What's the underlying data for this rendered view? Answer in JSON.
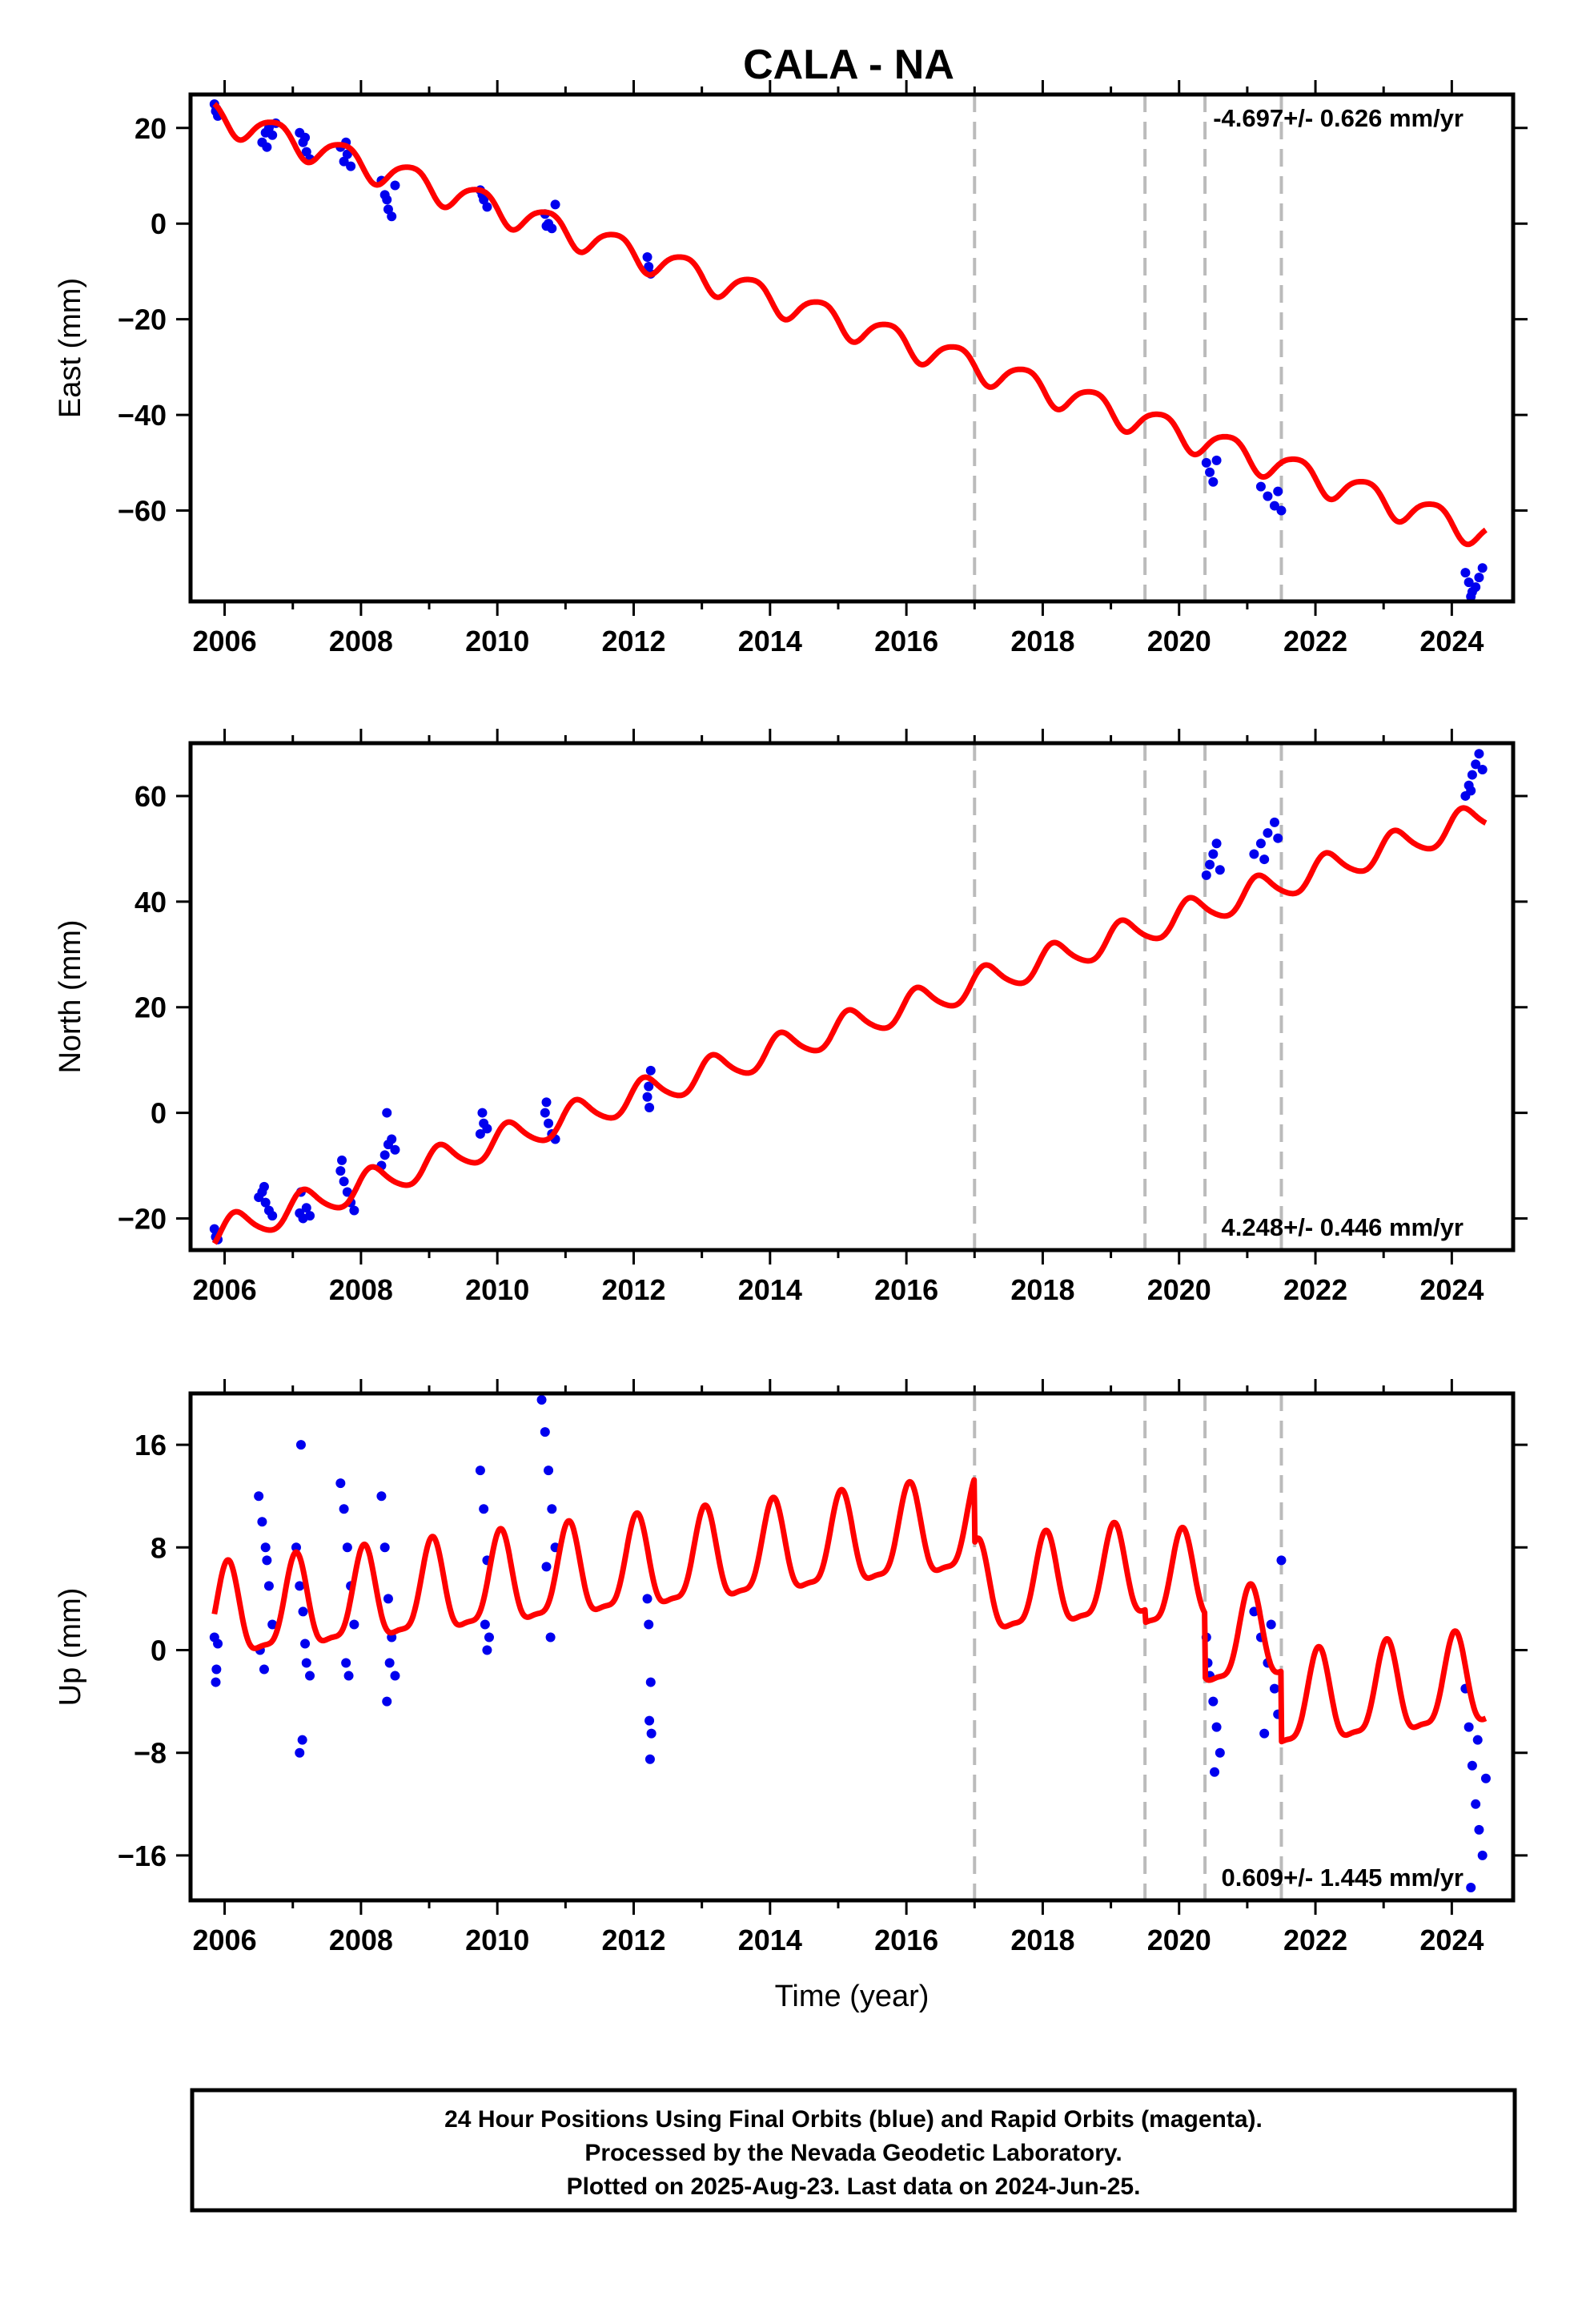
{
  "figure": {
    "title": "CALA - NA",
    "footer": {
      "line1": "24 Hour Positions Using Final Orbits (blue) and Rapid Orbits (magenta).",
      "line2": "Processed by the Nevada Geodetic Laboratory.",
      "line3": "Plotted on 2025-Aug-23. Last data on 2024-Jun-25."
    }
  },
  "colors": {
    "data": "#0000ee",
    "model": "#ff0000",
    "event": "#bbbbbb",
    "frame": "#000000"
  },
  "chart_data": [
    {
      "type": "scatter",
      "name": "east",
      "ylabel": "East (mm)",
      "xlabel": "",
      "xlim": [
        2005.5,
        2024.9
      ],
      "ylim": [
        -79,
        27
      ],
      "xticks": [
        2006,
        2008,
        2010,
        2012,
        2014,
        2016,
        2018,
        2020,
        2022,
        2024
      ],
      "yticks": [
        20,
        0,
        -20,
        -40,
        -60
      ],
      "rate_text": "-4.697+/- 0.626 mm/yr",
      "rate_position": "top-right",
      "event_lines_x": [
        2017.0,
        2019.5,
        2020.38,
        2021.5
      ],
      "model": {
        "intercept_2006": 22.0,
        "rate": -4.697,
        "annual_amp": 3.0,
        "annual_phase": 3.3,
        "semi_amp": 0.5,
        "offsets": []
      },
      "points": [
        [
          2005.85,
          25
        ],
        [
          2005.87,
          23.5
        ],
        [
          2005.9,
          22.5
        ],
        [
          2005.88,
          24
        ],
        [
          2006.55,
          17
        ],
        [
          2006.6,
          19
        ],
        [
          2006.65,
          20
        ],
        [
          2006.7,
          18.5
        ],
        [
          2006.75,
          21
        ],
        [
          2006.62,
          16
        ],
        [
          2007.1,
          19
        ],
        [
          2007.15,
          17
        ],
        [
          2007.2,
          15
        ],
        [
          2007.25,
          13.5
        ],
        [
          2007.18,
          18
        ],
        [
          2007.7,
          16
        ],
        [
          2007.75,
          13
        ],
        [
          2007.8,
          14.5
        ],
        [
          2007.85,
          12
        ],
        [
          2007.78,
          17
        ],
        [
          2008.3,
          9
        ],
        [
          2008.35,
          6
        ],
        [
          2008.4,
          3
        ],
        [
          2008.45,
          1.5
        ],
        [
          2008.5,
          8
        ],
        [
          2008.38,
          5
        ],
        [
          2009.75,
          7
        ],
        [
          2009.8,
          5
        ],
        [
          2009.85,
          3.5
        ],
        [
          2009.78,
          6
        ],
        [
          2010.7,
          2
        ],
        [
          2010.75,
          0
        ],
        [
          2010.8,
          -1
        ],
        [
          2010.85,
          4
        ],
        [
          2010.72,
          -0.5
        ],
        [
          2012.2,
          -7
        ],
        [
          2012.22,
          -9
        ],
        [
          2012.25,
          -10.5
        ],
        [
          2020.4,
          -50
        ],
        [
          2020.45,
          -52
        ],
        [
          2020.5,
          -54
        ],
        [
          2020.55,
          -49.5
        ],
        [
          2021.2,
          -55
        ],
        [
          2021.3,
          -57
        ],
        [
          2021.4,
          -59
        ],
        [
          2021.45,
          -56
        ],
        [
          2021.5,
          -60
        ],
        [
          2024.2,
          -73
        ],
        [
          2024.25,
          -75
        ],
        [
          2024.3,
          -77
        ],
        [
          2024.35,
          -76
        ],
        [
          2024.4,
          -74
        ],
        [
          2024.45,
          -72
        ],
        [
          2024.28,
          -78
        ]
      ]
    },
    {
      "type": "scatter",
      "name": "north",
      "ylabel": "North (mm)",
      "xlabel": "",
      "xlim": [
        2005.5,
        2024.9
      ],
      "ylim": [
        -26,
        70
      ],
      "xticks": [
        2006,
        2008,
        2010,
        2012,
        2014,
        2016,
        2018,
        2020,
        2022,
        2024
      ],
      "yticks": [
        60,
        40,
        20,
        0,
        -20
      ],
      "rate_text": "4.248+/- 0.446 mm/yr",
      "rate_position": "bottom-right",
      "event_lines_x": [
        2017.0,
        2019.5,
        2020.38,
        2021.5
      ],
      "model": {
        "intercept_2006": -22.5,
        "rate": 4.248,
        "annual_amp": 2.8,
        "annual_phase": 0.5,
        "semi_amp": 0.4,
        "offsets": []
      },
      "points": [
        [
          2005.85,
          -22
        ],
        [
          2005.87,
          -23.5
        ],
        [
          2005.9,
          -24
        ],
        [
          2006.5,
          -16
        ],
        [
          2006.55,
          -15
        ],
        [
          2006.6,
          -17
        ],
        [
          2006.65,
          -18.5
        ],
        [
          2006.7,
          -19.5
        ],
        [
          2006.58,
          -14
        ],
        [
          2007.1,
          -19
        ],
        [
          2007.15,
          -20
        ],
        [
          2007.2,
          -18
        ],
        [
          2007.12,
          -15
        ],
        [
          2007.25,
          -19.5
        ],
        [
          2007.7,
          -11
        ],
        [
          2007.75,
          -13
        ],
        [
          2007.8,
          -15
        ],
        [
          2007.85,
          -17
        ],
        [
          2007.9,
          -18.5
        ],
        [
          2007.72,
          -9
        ],
        [
          2008.3,
          -10
        ],
        [
          2008.35,
          -8
        ],
        [
          2008.4,
          -6
        ],
        [
          2008.45,
          -5
        ],
        [
          2008.5,
          -7
        ],
        [
          2008.38,
          0
        ],
        [
          2009.75,
          -4
        ],
        [
          2009.8,
          -2
        ],
        [
          2009.85,
          -3
        ],
        [
          2009.78,
          0
        ],
        [
          2010.7,
          0
        ],
        [
          2010.75,
          -2
        ],
        [
          2010.8,
          -4
        ],
        [
          2010.85,
          -5
        ],
        [
          2010.72,
          2
        ],
        [
          2012.2,
          3
        ],
        [
          2012.22,
          5
        ],
        [
          2012.25,
          8
        ],
        [
          2012.23,
          1
        ],
        [
          2020.4,
          45
        ],
        [
          2020.45,
          47
        ],
        [
          2020.5,
          49
        ],
        [
          2020.55,
          51
        ],
        [
          2020.6,
          46
        ],
        [
          2021.1,
          49
        ],
        [
          2021.2,
          51
        ],
        [
          2021.3,
          53
        ],
        [
          2021.4,
          55
        ],
        [
          2021.45,
          52
        ],
        [
          2021.25,
          48
        ],
        [
          2024.2,
          60
        ],
        [
          2024.25,
          62
        ],
        [
          2024.3,
          64
        ],
        [
          2024.35,
          66
        ],
        [
          2024.4,
          68
        ],
        [
          2024.45,
          65
        ],
        [
          2024.28,
          61
        ]
      ]
    },
    {
      "type": "scatter",
      "name": "up",
      "ylabel": "Up (mm)",
      "xlabel": "Time (year)",
      "xlim": [
        2005.5,
        2024.9
      ],
      "ylim": [
        -19.5,
        20
      ],
      "xticks": [
        2006,
        2008,
        2010,
        2012,
        2014,
        2016,
        2018,
        2020,
        2022,
        2024
      ],
      "yticks": [
        16,
        8,
        0,
        -8,
        -16
      ],
      "rate_text": "0.609+/- 1.445 mm/yr",
      "rate_position": "bottom-right",
      "event_lines_x": [
        2017.0,
        2019.5,
        2020.38,
        2021.5
      ],
      "model": {
        "intercept_2006": 2.5,
        "rate": 0.609,
        "annual_amp": 3.5,
        "annual_phase": 1.3,
        "semi_amp": 1.0,
        "offsets": [
          {
            "x": 2017.0,
            "dy": -5.0
          },
          {
            "x": 2019.5,
            "dy": -1.0
          },
          {
            "x": 2020.38,
            "dy": -5.0
          },
          {
            "x": 2021.5,
            "dy": -5.5
          }
        ]
      },
      "points": [
        [
          2005.85,
          1
        ],
        [
          2005.87,
          -2.5
        ],
        [
          2005.9,
          0.5
        ],
        [
          2005.88,
          -1.5
        ],
        [
          2006.5,
          12
        ],
        [
          2006.55,
          10
        ],
        [
          2006.6,
          8
        ],
        [
          2006.65,
          5
        ],
        [
          2006.7,
          2
        ],
        [
          2006.52,
          0
        ],
        [
          2006.58,
          -1.5
        ],
        [
          2006.62,
          7
        ],
        [
          2007.05,
          8
        ],
        [
          2007.1,
          5
        ],
        [
          2007.15,
          3
        ],
        [
          2007.2,
          -1
        ],
        [
          2007.25,
          -2
        ],
        [
          2007.12,
          16
        ],
        [
          2007.14,
          -7
        ],
        [
          2007.1,
          -8
        ],
        [
          2007.18,
          0.5
        ],
        [
          2007.7,
          13
        ],
        [
          2007.75,
          11
        ],
        [
          2007.8,
          8
        ],
        [
          2007.85,
          5
        ],
        [
          2007.9,
          2
        ],
        [
          2007.78,
          -1
        ],
        [
          2007.82,
          -2
        ],
        [
          2008.3,
          12
        ],
        [
          2008.35,
          8
        ],
        [
          2008.4,
          4
        ],
        [
          2008.45,
          1
        ],
        [
          2008.5,
          -2
        ],
        [
          2008.38,
          -4
        ],
        [
          2008.42,
          -1
        ],
        [
          2009.75,
          14
        ],
        [
          2009.8,
          11
        ],
        [
          2009.85,
          7
        ],
        [
          2009.82,
          2
        ],
        [
          2009.88,
          1
        ],
        [
          2009.85,
          0
        ],
        [
          2010.65,
          19.5
        ],
        [
          2010.7,
          17
        ],
        [
          2010.75,
          14
        ],
        [
          2010.8,
          11
        ],
        [
          2010.85,
          8
        ],
        [
          2010.72,
          6.5
        ],
        [
          2010.78,
          1
        ],
        [
          2012.2,
          4
        ],
        [
          2012.22,
          2
        ],
        [
          2012.25,
          -2.5
        ],
        [
          2012.23,
          -5.5
        ],
        [
          2012.26,
          -6.5
        ],
        [
          2012.24,
          -8.5
        ],
        [
          2020.4,
          1
        ],
        [
          2020.45,
          -2
        ],
        [
          2020.5,
          -4
        ],
        [
          2020.55,
          -6
        ],
        [
          2020.6,
          -8
        ],
        [
          2020.52,
          -9.5
        ],
        [
          2020.42,
          -1
        ],
        [
          2021.1,
          3
        ],
        [
          2021.2,
          1
        ],
        [
          2021.3,
          -1
        ],
        [
          2021.4,
          -3
        ],
        [
          2021.45,
          -5
        ],
        [
          2021.5,
          7
        ],
        [
          2021.35,
          2
        ],
        [
          2021.25,
          -6.5
        ],
        [
          2024.2,
          -3
        ],
        [
          2024.25,
          -6
        ],
        [
          2024.3,
          -9
        ],
        [
          2024.35,
          -12
        ],
        [
          2024.4,
          -14
        ],
        [
          2024.45,
          -16
        ],
        [
          2024.5,
          -10
        ],
        [
          2024.28,
          -18.5
        ],
        [
          2024.38,
          -7
        ]
      ]
    }
  ]
}
